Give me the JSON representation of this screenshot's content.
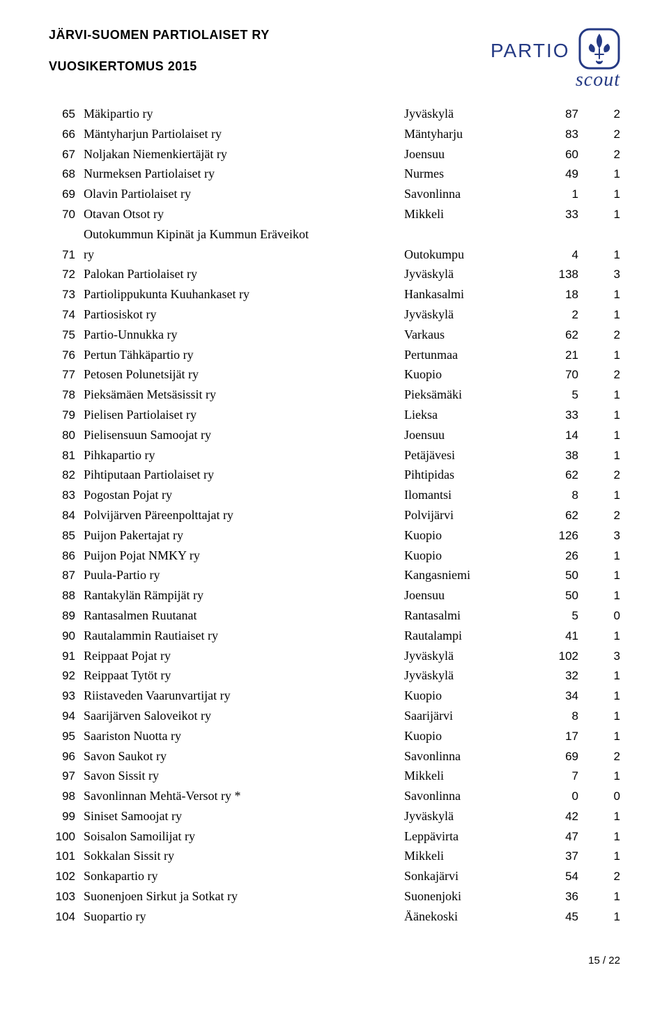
{
  "header": {
    "title": "JÄRVI-SUOMEN PARTIOLAISET RY",
    "subtitle": "VUOSIKERTOMUS 2015",
    "logo_text": "PARTIO",
    "logo_sub": "scout"
  },
  "colors": {
    "text": "#000000",
    "logo": "#253a84",
    "background": "#ffffff"
  },
  "table": {
    "rows": [
      {
        "n": "65",
        "name": "Mäkipartio ry",
        "city": "Jyväskylä",
        "v1": "87",
        "v2": "2"
      },
      {
        "n": "66",
        "name": "Mäntyharjun Partiolaiset ry",
        "city": "Mäntyharju",
        "v1": "83",
        "v2": "2"
      },
      {
        "n": "67",
        "name": "Noljakan Niemenkiertäjät ry",
        "city": "Joensuu",
        "v1": "60",
        "v2": "2"
      },
      {
        "n": "68",
        "name": "Nurmeksen Partiolaiset ry",
        "city": "Nurmes",
        "v1": "49",
        "v2": "1"
      },
      {
        "n": "69",
        "name": "Olavin Partiolaiset ry",
        "city": "Savonlinna",
        "v1": "1",
        "v2": "1"
      },
      {
        "n": "70",
        "name": "Otavan Otsot ry",
        "city": "Mikkeli",
        "v1": "33",
        "v2": "1"
      },
      {
        "n": "71",
        "name": "Outokummun Kipinät ja Kummun Eräveikot\nry",
        "city": "Outokumpu",
        "v1": "4",
        "v2": "1",
        "multiline": true
      },
      {
        "n": "72",
        "name": "Palokan Partiolaiset ry",
        "city": "Jyväskylä",
        "v1": "138",
        "v2": "3"
      },
      {
        "n": "73",
        "name": "Partiolippukunta Kuuhankaset ry",
        "city": "Hankasalmi",
        "v1": "18",
        "v2": "1"
      },
      {
        "n": "74",
        "name": "Partiosiskot ry",
        "city": "Jyväskylä",
        "v1": "2",
        "v2": "1"
      },
      {
        "n": "75",
        "name": "Partio-Unnukka ry",
        "city": "Varkaus",
        "v1": "62",
        "v2": "2"
      },
      {
        "n": "76",
        "name": "Pertun Tähkäpartio ry",
        "city": "Pertunmaa",
        "v1": "21",
        "v2": "1"
      },
      {
        "n": "77",
        "name": "Petosen Polunetsijät ry",
        "city": "Kuopio",
        "v1": "70",
        "v2": "2"
      },
      {
        "n": "78",
        "name": "Pieksämäen Metsäsissit ry",
        "city": "Pieksämäki",
        "v1": "5",
        "v2": "1"
      },
      {
        "n": "79",
        "name": "Pielisen Partiolaiset ry",
        "city": "Lieksa",
        "v1": "33",
        "v2": "1"
      },
      {
        "n": "80",
        "name": "Pielisensuun Samoojat ry",
        "city": "Joensuu",
        "v1": "14",
        "v2": "1"
      },
      {
        "n": "81",
        "name": "Pihkapartio ry",
        "city": "Petäjävesi",
        "v1": "38",
        "v2": "1"
      },
      {
        "n": "82",
        "name": "Pihtiputaan Partiolaiset ry",
        "city": "Pihtipidas",
        "v1": "62",
        "v2": "2"
      },
      {
        "n": "83",
        "name": "Pogostan Pojat ry",
        "city": "Ilomantsi",
        "v1": "8",
        "v2": "1"
      },
      {
        "n": "84",
        "name": "Polvijärven Päreenpolttajat ry",
        "city": "Polvijärvi",
        "v1": "62",
        "v2": "2"
      },
      {
        "n": "85",
        "name": "Puijon Pakertajat ry",
        "city": "Kuopio",
        "v1": "126",
        "v2": "3"
      },
      {
        "n": "86",
        "name": "Puijon Pojat NMKY ry",
        "city": "Kuopio",
        "v1": "26",
        "v2": "1"
      },
      {
        "n": "87",
        "name": "Puula-Partio ry",
        "city": "Kangasniemi",
        "v1": "50",
        "v2": "1"
      },
      {
        "n": "88",
        "name": "Rantakylän Rämpijät ry",
        "city": "Joensuu",
        "v1": "50",
        "v2": "1"
      },
      {
        "n": "89",
        "name": "Rantasalmen Ruutanat",
        "city": "Rantasalmi",
        "v1": "5",
        "v2": "0"
      },
      {
        "n": "90",
        "name": "Rautalammin Rautiaiset ry",
        "city": "Rautalampi",
        "v1": "41",
        "v2": "1"
      },
      {
        "n": "91",
        "name": "Reippaat Pojat ry",
        "city": "Jyväskylä",
        "v1": "102",
        "v2": "3"
      },
      {
        "n": "92",
        "name": "Reippaat Tytöt ry",
        "city": "Jyväskylä",
        "v1": "32",
        "v2": "1"
      },
      {
        "n": "93",
        "name": "Riistaveden Vaarunvartijat ry",
        "city": "Kuopio",
        "v1": "34",
        "v2": "1"
      },
      {
        "n": "94",
        "name": "Saarijärven Saloveikot ry",
        "city": "Saarijärvi",
        "v1": "8",
        "v2": "1"
      },
      {
        "n": "95",
        "name": "Saariston Nuotta ry",
        "city": "Kuopio",
        "v1": "17",
        "v2": "1"
      },
      {
        "n": "96",
        "name": "Savon Saukot ry",
        "city": "Savonlinna",
        "v1": "69",
        "v2": "2"
      },
      {
        "n": "97",
        "name": "Savon Sissit ry",
        "city": "Mikkeli",
        "v1": "7",
        "v2": "1"
      },
      {
        "n": "98",
        "name": "Savonlinnan Mehtä-Versot ry *",
        "city": "Savonlinna",
        "v1": "0",
        "v2": "0"
      },
      {
        "n": "99",
        "name": "Siniset Samoojat ry",
        "city": "Jyväskylä",
        "v1": "42",
        "v2": "1"
      },
      {
        "n": "100",
        "name": "Soisalon Samoilijat ry",
        "city": "Leppävirta",
        "v1": "47",
        "v2": "1"
      },
      {
        "n": "101",
        "name": "Sokkalan Sissit ry",
        "city": "Mikkeli",
        "v1": "37",
        "v2": "1"
      },
      {
        "n": "102",
        "name": "Sonkapartio ry",
        "city": "Sonkajärvi",
        "v1": "54",
        "v2": "2"
      },
      {
        "n": "103",
        "name": "Suonenjoen Sirkut ja Sotkat ry",
        "city": "Suonenjoki",
        "v1": "36",
        "v2": "1"
      },
      {
        "n": "104",
        "name": "Suopartio ry",
        "city": "Äänekoski",
        "v1": "45",
        "v2": "1"
      }
    ]
  },
  "footer": {
    "page": "15 / 22"
  }
}
